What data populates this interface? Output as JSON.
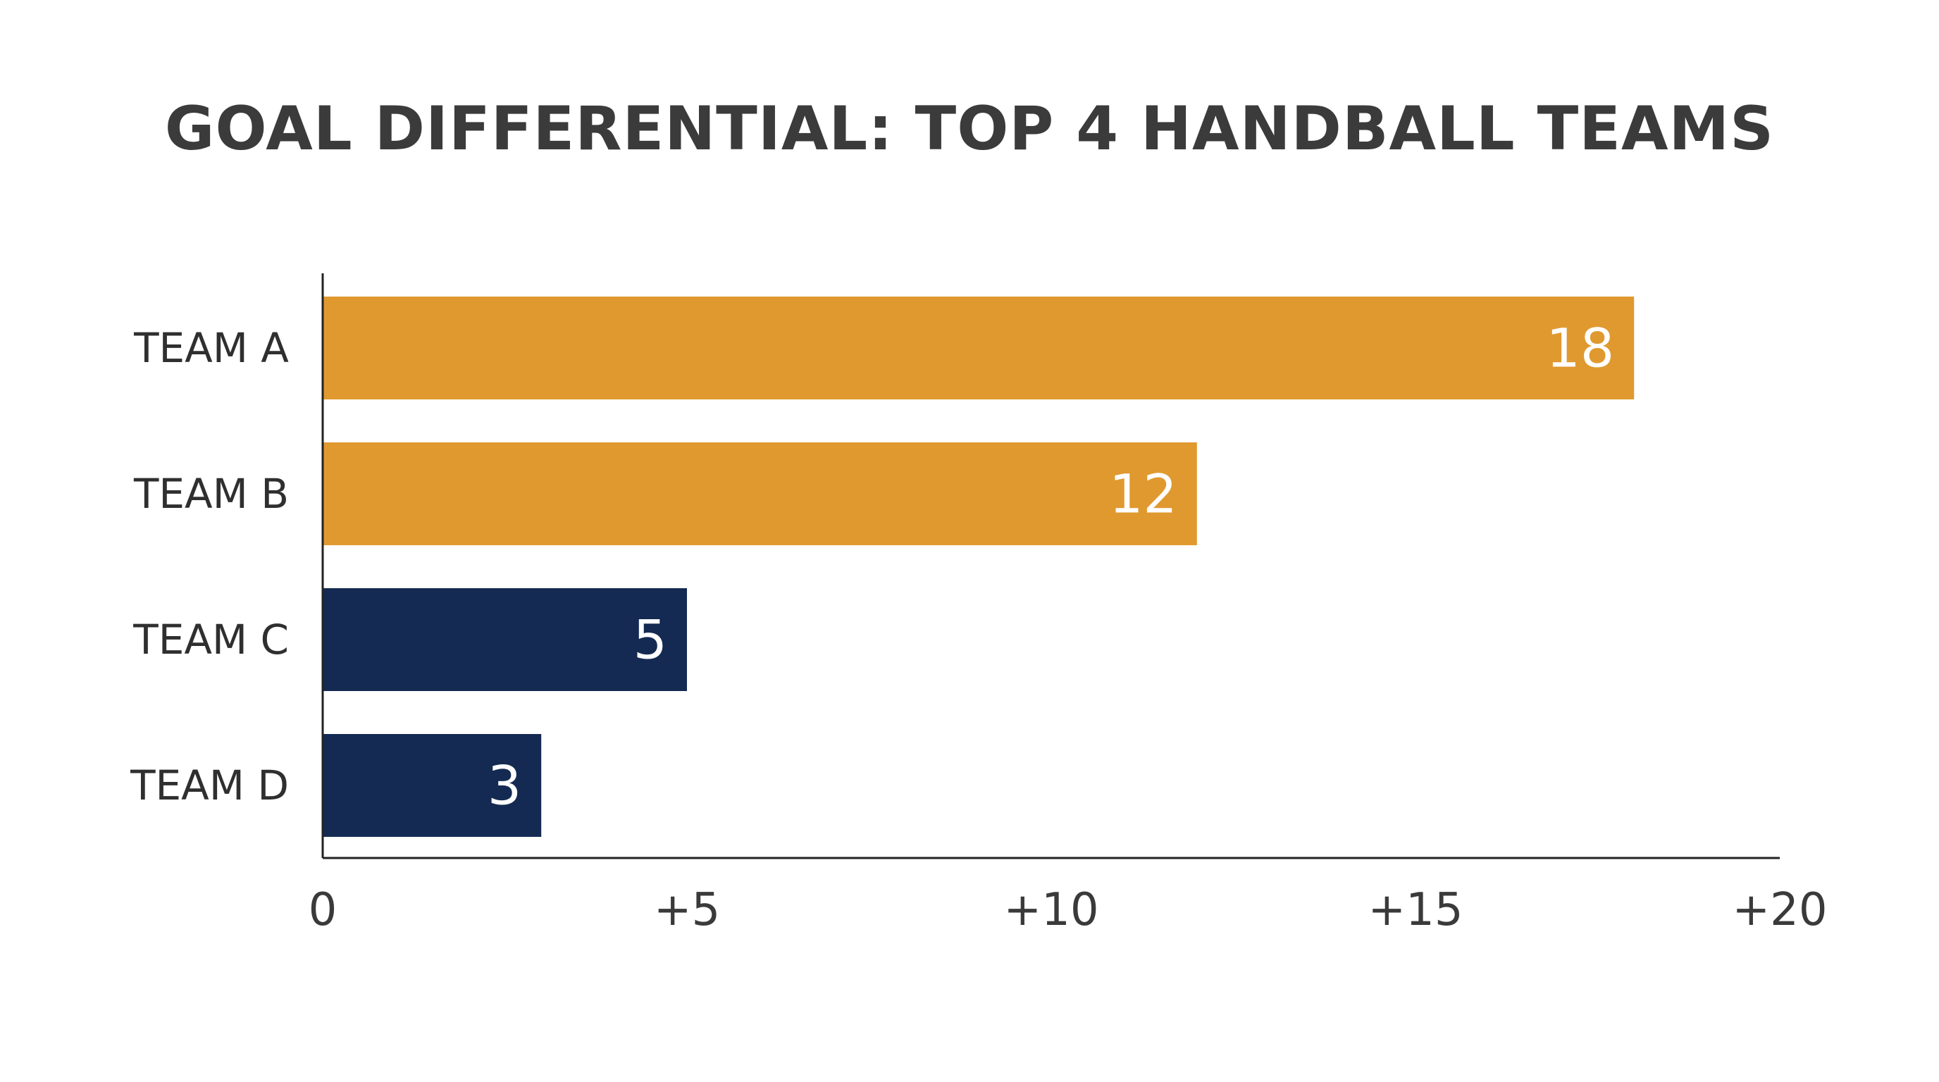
{
  "chart_data": {
    "type": "bar",
    "orientation": "horizontal",
    "title": "GOAL DIFFERENTIAL: TOP 4 HANDBALL TEAMS",
    "xlabel": "",
    "ylabel": "",
    "categories": [
      "TEAM A",
      "TEAM B",
      "TEAM C",
      "TEAM D"
    ],
    "values": [
      18,
      12,
      5,
      3
    ],
    "data_labels": [
      "18",
      "12",
      "5",
      "3"
    ],
    "bar_colors": [
      "#E0992F",
      "#E0992F",
      "#142A52",
      "#142A52"
    ],
    "xlim": [
      0,
      20
    ],
    "xticks": [
      0,
      5,
      10,
      15,
      20
    ],
    "xtick_labels": [
      "0",
      "+5",
      "+10",
      "+15",
      "+20"
    ],
    "grid": false,
    "legend": "none"
  }
}
